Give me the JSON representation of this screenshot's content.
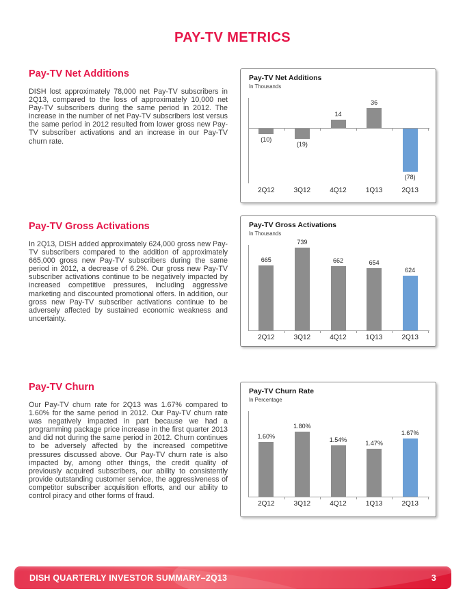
{
  "page": {
    "title": "PAY-TV METRICS",
    "footer": {
      "text": "DISH QUARTERLY INVESTOR SUMMARY–2Q13",
      "page_number": "3"
    }
  },
  "colors": {
    "accent_red": "#e6174a",
    "bar_gray": "#8d8d8d",
    "bar_blue": "#6b9fd6",
    "axis_gray": "#9b9b9b",
    "footer_red_dark": "#dd1734",
    "footer_red_light": "#ef4754"
  },
  "sections": [
    {
      "heading": "Pay-TV Net Additions",
      "body": "DISH lost approximately 78,000 net Pay-TV subscribers in 2Q13, compared to the loss of approximately 10,000 net Pay-TV subscribers during the same period in 2012. The increase in the number of net Pay-TV subscribers lost versus the same period in 2012 resulted from lower gross new Pay-TV subscriber activations and an increase in our Pay-TV churn rate."
    },
    {
      "heading": "Pay-TV Gross Activations",
      "body": "In 2Q13, DISH added approximately 624,000 gross new Pay-TV subscribers compared to the addition of approximately 665,000 gross new Pay-TV subscribers during the same period in 2012, a decrease of 6.2%. Our gross new Pay-TV subscriber activations continue to be negatively impacted by increased competitive pressures, including aggressive marketing and discounted promotional offers. In addition, our gross new Pay-TV subscriber activations continue to be adversely affected by sustained economic weakness and uncertainty."
    },
    {
      "heading": "Pay-TV Churn",
      "body": "Our Pay-TV churn rate for 2Q13 was 1.67% compared to 1.60% for the same period in 2012. Our Pay-TV churn rate was negatively impacted in part because we had a programming package price increase in the first quarter 2013 and did not during the same period in 2012. Churn continues to be adversely affected by the increased competitive pressures discussed above. Our Pay-TV churn rate is also impacted by, among other things, the credit quality of previously acquired subscribers, our ability to consistently provide outstanding customer service, the aggressiveness of competitor subscriber acquisition efforts, and our ability to control piracy and other forms of fraud."
    }
  ],
  "chart_data": [
    {
      "type": "bar",
      "title": "Pay-TV Net Additions",
      "subtitle": "In Thousands",
      "categories": [
        "2Q12",
        "3Q12",
        "4Q12",
        "1Q13",
        "2Q13"
      ],
      "values": [
        -10,
        -19,
        14,
        36,
        -78
      ],
      "value_labels": [
        "(10)",
        "(19)",
        "14",
        "36",
        "(78)"
      ],
      "highlight_index": 4,
      "ylim": [
        -100,
        54
      ],
      "baseline": 0,
      "grid": false,
      "legend": "none"
    },
    {
      "type": "bar",
      "title": "Pay-TV Gross Activations",
      "subtitle": "In Thousands",
      "categories": [
        "2Q12",
        "3Q12",
        "4Q12",
        "1Q13",
        "2Q13"
      ],
      "values": [
        665,
        739,
        662,
        654,
        624
      ],
      "value_labels": [
        "665",
        "739",
        "662",
        "654",
        "624"
      ],
      "highlight_index": 4,
      "ylim": [
        400,
        750
      ],
      "grid": false,
      "legend": "none"
    },
    {
      "type": "bar",
      "title": "Pay-TV Churn Rate",
      "subtitle": "In Percentage",
      "categories": [
        "2Q12",
        "3Q12",
        "4Q12",
        "1Q13",
        "2Q13"
      ],
      "values": [
        1.6,
        1.8,
        1.54,
        1.47,
        1.67
      ],
      "value_labels": [
        "1.60%",
        "1.80%",
        "1.54%",
        "1.47%",
        "1.67%"
      ],
      "highlight_index": 4,
      "ylim": [
        0.55,
        2.2
      ],
      "grid": false,
      "legend": "none"
    }
  ]
}
